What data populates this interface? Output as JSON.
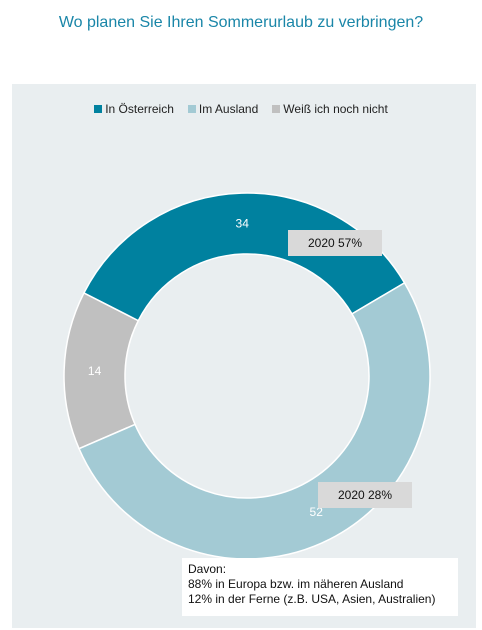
{
  "title": "Wo planen Sie Ihren Sommerurlaub zu verbringen?",
  "chart_data": {
    "type": "pie",
    "variant": "donut",
    "categories": [
      "In Österreich",
      "Im Ausland",
      "Weiß ich noch nicht"
    ],
    "values": [
      34,
      52,
      14
    ],
    "colors": [
      "#00819f",
      "#a3cad4",
      "#c0c0c0"
    ],
    "legend_position": "top",
    "data_labels": [
      "34",
      "52",
      "14"
    ],
    "annotations": [
      {
        "text": "2020  57%",
        "series": "In Österreich"
      },
      {
        "text": "2020  28%",
        "series": "Im Ausland"
      }
    ]
  },
  "note": {
    "heading": "Davon:",
    "line1": "88% in Europa bzw. im näheren Ausland",
    "line2": "12% in der Ferne (z.B. USA, Asien, Australien)"
  }
}
